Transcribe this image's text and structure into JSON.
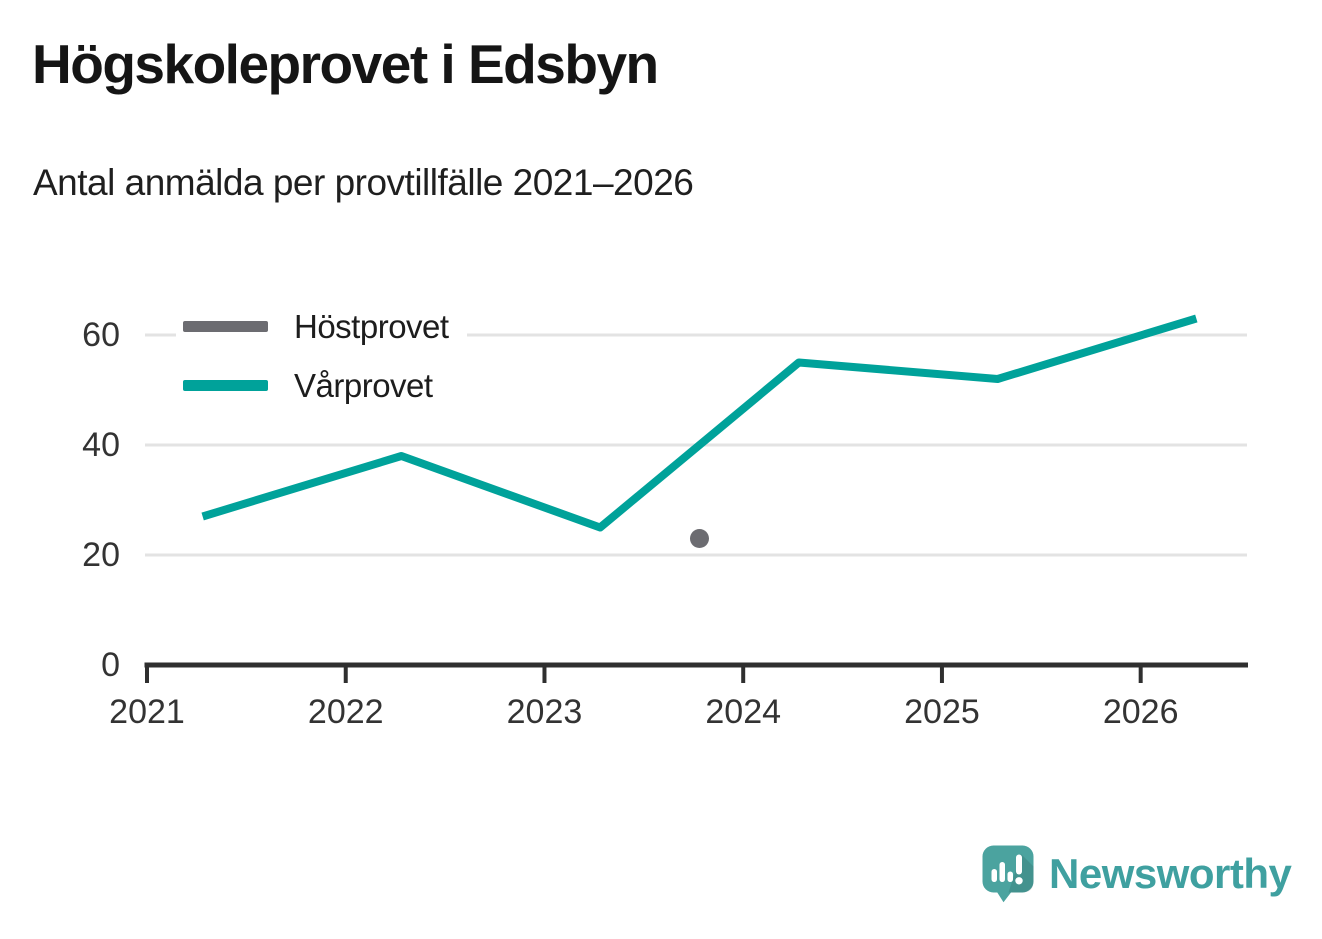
{
  "header": {
    "title": "Högskoleprovet i Edsbyn",
    "subtitle": "Antal anmälda per provtillfälle 2021–2026"
  },
  "chart_data": {
    "type": "line",
    "title": "Högskoleprovet i Edsbyn",
    "subtitle": "Antal anmälda per provtillfälle 2021–2026",
    "xlim": [
      2021,
      2026.54
    ],
    "ylim": [
      0,
      70
    ],
    "x_ticks": [
      2021,
      2022,
      2023,
      2024,
      2025,
      2026
    ],
    "y_ticks": [
      0,
      20,
      40,
      60
    ],
    "grid": "horizontal",
    "legend_position": "top-left-inside",
    "series": [
      {
        "name": "Höstprovet",
        "color": "#6c6c71",
        "style": "dot",
        "points": [
          {
            "x": 2023.78,
            "y": 23
          }
        ]
      },
      {
        "name": "Vårprovet",
        "color": "#00a29a",
        "style": "line",
        "points": [
          {
            "x": 2021.28,
            "y": 27
          },
          {
            "x": 2022.28,
            "y": 38
          },
          {
            "x": 2023.28,
            "y": 25
          },
          {
            "x": 2024.28,
            "y": 55
          },
          {
            "x": 2025.28,
            "y": 52
          },
          {
            "x": 2026.28,
            "y": 63
          }
        ]
      }
    ]
  },
  "footer": {
    "brand": "Newsworthy"
  },
  "colors": {
    "axis": "#2f2f2f",
    "grid": "#e3e3e3",
    "tick_text": "#333333",
    "title_text": "#151515",
    "brand_text": "#3fa0a0",
    "logo_fill": "#4ba39f"
  }
}
